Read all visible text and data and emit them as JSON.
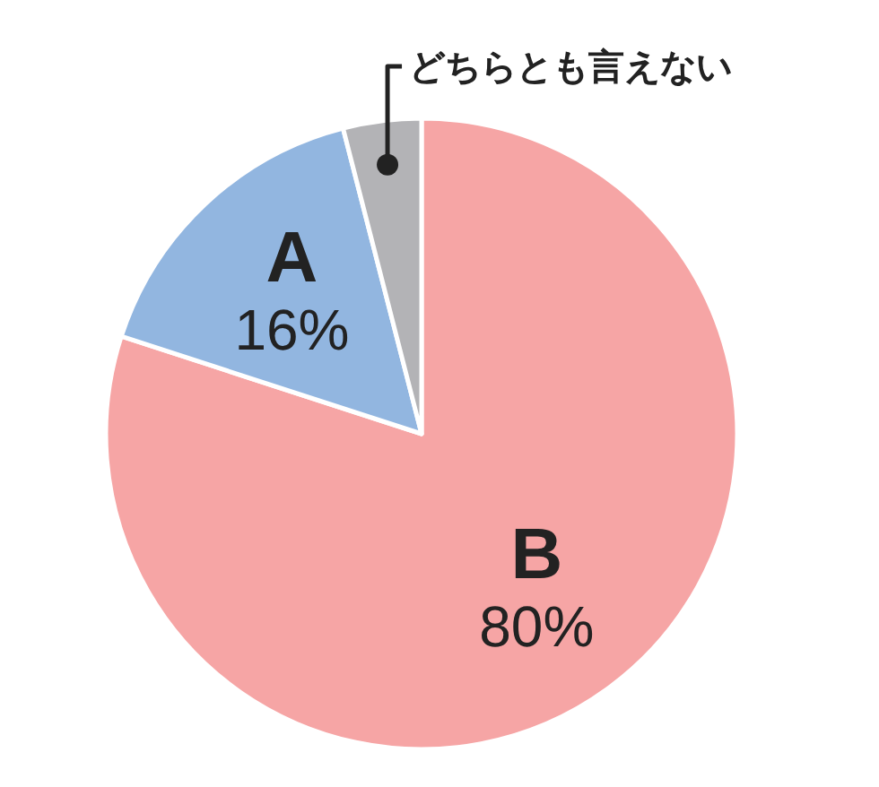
{
  "chart_data": {
    "type": "pie",
    "categories": [
      "B",
      "A",
      "どちらとも言えない"
    ],
    "values": [
      80,
      16,
      4
    ],
    "colors": [
      "#f6a5a5",
      "#92b6e0",
      "#b3b3b6"
    ],
    "value_labels": [
      "80%",
      "16%",
      null
    ]
  }
}
